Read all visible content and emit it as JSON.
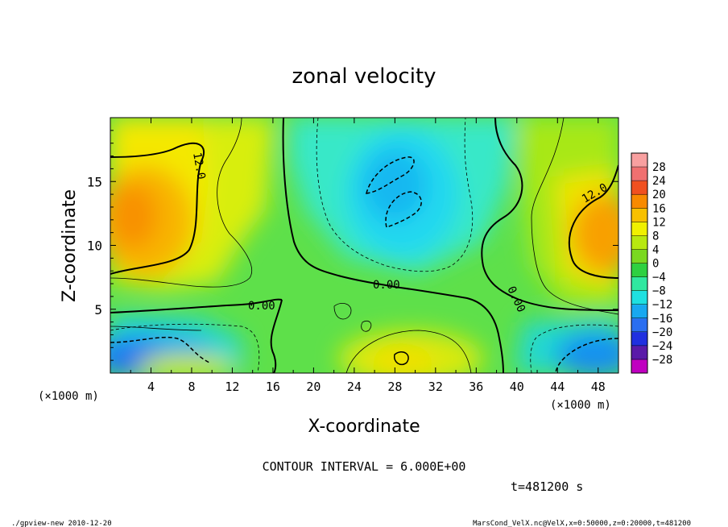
{
  "chart_data": {
    "type": "heatmap",
    "title": "zonal velocity",
    "xlabel": "X-coordinate",
    "ylabel": "Z-coordinate",
    "x_unit_label": "(×1000 m)",
    "y_unit_label": "(×1000 m)",
    "xlim": [
      0,
      50
    ],
    "ylim": [
      0,
      20
    ],
    "x_ticks": [
      4,
      8,
      12,
      16,
      20,
      24,
      28,
      32,
      36,
      40,
      44,
      48
    ],
    "y_ticks": [
      5,
      10,
      15
    ],
    "colorbar": {
      "levels": [
        -28,
        -24,
        -20,
        -16,
        -12,
        -8,
        -4,
        0,
        4,
        8,
        12,
        16,
        20,
        24,
        28
      ],
      "labels": [
        "28",
        "24",
        "20",
        "16",
        "12",
        "8",
        "4",
        "0",
        "−4",
        "−8",
        "−12",
        "−16",
        "−20",
        "−24",
        "−28"
      ],
      "colors": [
        "#c000c0",
        "#5a1aa8",
        "#2030e0",
        "#2a6ef0",
        "#18a8f0",
        "#1ee0e0",
        "#30e8a0",
        "#2ed040",
        "#7ad820",
        "#b8e810",
        "#f0f000",
        "#f8c000",
        "#f88a00",
        "#f05020",
        "#f07070",
        "#f8a0a0"
      ]
    },
    "contour_interval": 6.0,
    "contour_labels": [
      "12.0",
      "12.0",
      "0.00",
      "0.00",
      "0.00"
    ],
    "contour_interval_text": "CONTOUR INTERVAL = 6.000E+00",
    "time_text": "t=481200 s"
  },
  "footer": {
    "left": "./gpview-new  2010-12-20",
    "right": "MarsCond_VelX.nc@VelX,x=0:50000,z=0:20000,t=481200"
  }
}
